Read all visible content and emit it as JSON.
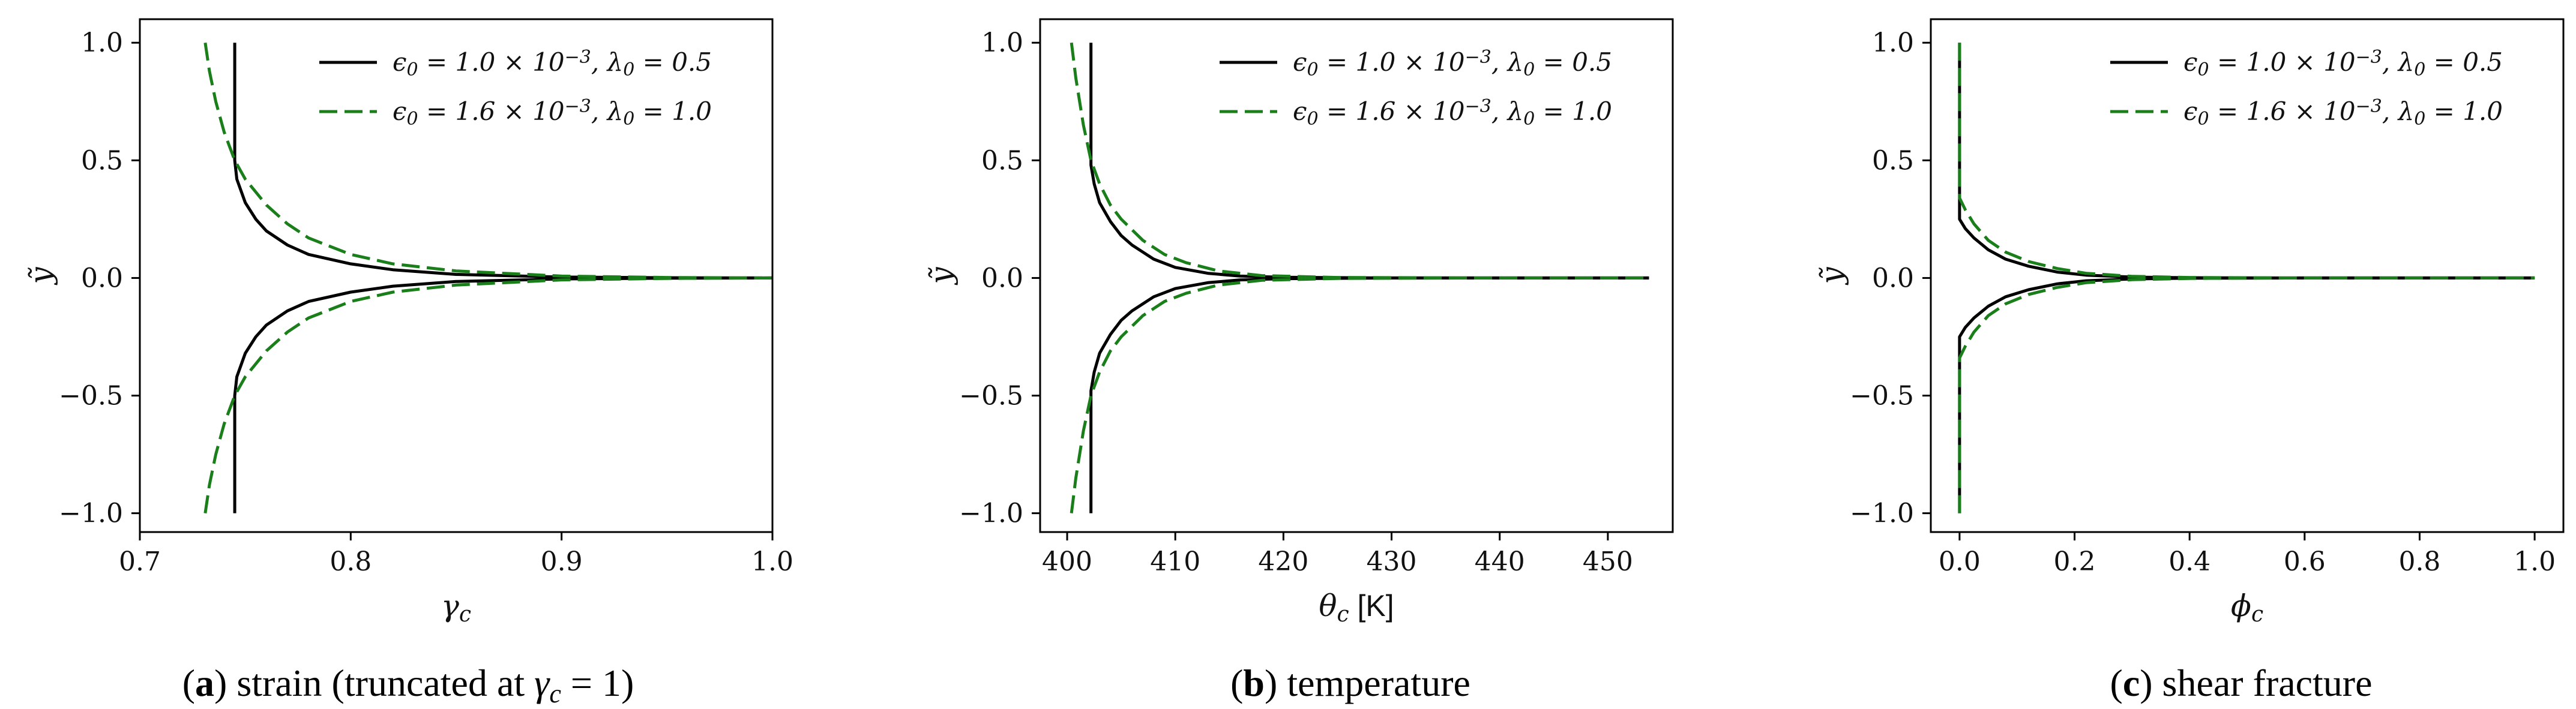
{
  "chart_data": [
    {
      "type": "line",
      "caption": {
        "letter": "a",
        "text": "strain (truncated at γc = 1)"
      },
      "xlabel": "γc",
      "ylabel": "ỹ",
      "xlim": [
        0.7,
        1.0
      ],
      "ylim": [
        -1.08,
        1.1
      ],
      "xticks": [
        0.7,
        0.8,
        0.9,
        1.0
      ],
      "xtick_labels": [
        "0.7",
        "0.8",
        "0.9",
        "1.0"
      ],
      "yticks": [
        -1.0,
        -0.5,
        0.0,
        0.5,
        1.0
      ],
      "ytick_labels": [
        "−1.0",
        "−0.5",
        "0.0",
        "0.5",
        "1.0"
      ],
      "grid": false,
      "legend": "top-right",
      "series": [
        {
          "name": "ϵ0 = 1.0 × 10⁻³, λ0 = 0.5",
          "color": "#000000",
          "style": "solid",
          "x": [
            0.745,
            0.745,
            0.746,
            0.75,
            0.755,
            0.76,
            0.77,
            0.78,
            0.8,
            0.82,
            0.85,
            0.9,
            0.95,
            1.0
          ],
          "y": [
            1.0,
            0.5,
            0.42,
            0.32,
            0.25,
            0.2,
            0.14,
            0.1,
            0.06,
            0.035,
            0.015,
            0.004,
            0.001,
            0.0
          ]
        },
        {
          "name": "ϵ0 = 1.6 × 10⁻³, λ0 = 1.0",
          "color": "#1a7f1a",
          "style": "dashed",
          "x": [
            0.731,
            0.733,
            0.736,
            0.74,
            0.745,
            0.75,
            0.76,
            0.77,
            0.78,
            0.8,
            0.82,
            0.85,
            0.9,
            0.95,
            1.0
          ],
          "y": [
            1.0,
            0.88,
            0.75,
            0.62,
            0.5,
            0.42,
            0.31,
            0.23,
            0.17,
            0.1,
            0.06,
            0.03,
            0.008,
            0.002,
            0.0
          ]
        }
      ]
    },
    {
      "type": "line",
      "caption": {
        "letter": "b",
        "text": "temperature"
      },
      "xlabel": "θc [K]",
      "ylabel": "ỹ",
      "xlim": [
        397.5,
        456.0
      ],
      "ylim": [
        -1.08,
        1.1
      ],
      "xticks": [
        400,
        410,
        420,
        430,
        440,
        450
      ],
      "xtick_labels": [
        "400",
        "410",
        "420",
        "430",
        "440",
        "450"
      ],
      "yticks": [
        -1.0,
        -0.5,
        0.0,
        0.5,
        1.0
      ],
      "ytick_labels": [
        "−1.0",
        "−0.5",
        "0.0",
        "0.5",
        "1.0"
      ],
      "grid": false,
      "legend": "top-right",
      "series": [
        {
          "name": "ϵ0 = 1.0 × 10⁻³, λ0 = 0.5",
          "color": "#000000",
          "style": "solid",
          "x": [
            402.2,
            402.2,
            402.5,
            403,
            404,
            405,
            406,
            408,
            410,
            413,
            416,
            420,
            430,
            440,
            450,
            453.8
          ],
          "y": [
            1.0,
            0.48,
            0.4,
            0.32,
            0.24,
            0.18,
            0.14,
            0.08,
            0.045,
            0.02,
            0.008,
            0.003,
            0.0,
            0.0,
            0.0,
            0.0
          ]
        },
        {
          "name": "ϵ0 = 1.6 × 10⁻³, λ0 = 1.0",
          "color": "#1a7f1a",
          "style": "dashed",
          "x": [
            400.4,
            400.8,
            401.5,
            402.2,
            403,
            404,
            405,
            407,
            409,
            411,
            414,
            418,
            425,
            440,
            453.8
          ],
          "y": [
            1.0,
            0.85,
            0.65,
            0.5,
            0.4,
            0.31,
            0.25,
            0.16,
            0.1,
            0.065,
            0.03,
            0.01,
            0.002,
            0.0,
            0.0
          ]
        }
      ]
    },
    {
      "type": "line",
      "caption": {
        "letter": "c",
        "text": "shear fracture"
      },
      "xlabel": "ϕc",
      "ylabel": "ỹ",
      "xlim": [
        -0.05,
        1.05
      ],
      "ylim": [
        -1.08,
        1.1
      ],
      "xticks": [
        0.0,
        0.2,
        0.4,
        0.6,
        0.8,
        1.0
      ],
      "xtick_labels": [
        "0.0",
        "0.2",
        "0.4",
        "0.6",
        "0.8",
        "1.0"
      ],
      "yticks": [
        -1.0,
        -0.5,
        0.0,
        0.5,
        1.0
      ],
      "ytick_labels": [
        "−1.0",
        "−0.5",
        "0.0",
        "0.5",
        "1.0"
      ],
      "grid": false,
      "legend": "top-right",
      "series": [
        {
          "name": "ϵ0 = 1.0 × 10⁻³, λ0 = 0.5",
          "color": "#000000",
          "style": "solid",
          "x": [
            0.0,
            0.0,
            0.0,
            0.01,
            0.025,
            0.05,
            0.08,
            0.12,
            0.17,
            0.22,
            0.3,
            0.4,
            0.6,
            0.8,
            1.0
          ],
          "y": [
            1.0,
            0.5,
            0.25,
            0.21,
            0.17,
            0.12,
            0.08,
            0.05,
            0.025,
            0.012,
            0.004,
            0.001,
            0.0,
            0.0,
            0.0
          ]
        },
        {
          "name": "ϵ0 = 1.6 × 10⁻³, λ0 = 1.0",
          "color": "#1a7f1a",
          "style": "dashed",
          "x": [
            0.0,
            0.0,
            0.0,
            0.01,
            0.025,
            0.05,
            0.08,
            0.12,
            0.17,
            0.22,
            0.3,
            0.4,
            0.6,
            0.8,
            1.0
          ],
          "y": [
            1.0,
            0.6,
            0.34,
            0.29,
            0.23,
            0.16,
            0.11,
            0.07,
            0.04,
            0.02,
            0.007,
            0.002,
            0.0,
            0.0,
            0.0
          ]
        }
      ]
    }
  ]
}
